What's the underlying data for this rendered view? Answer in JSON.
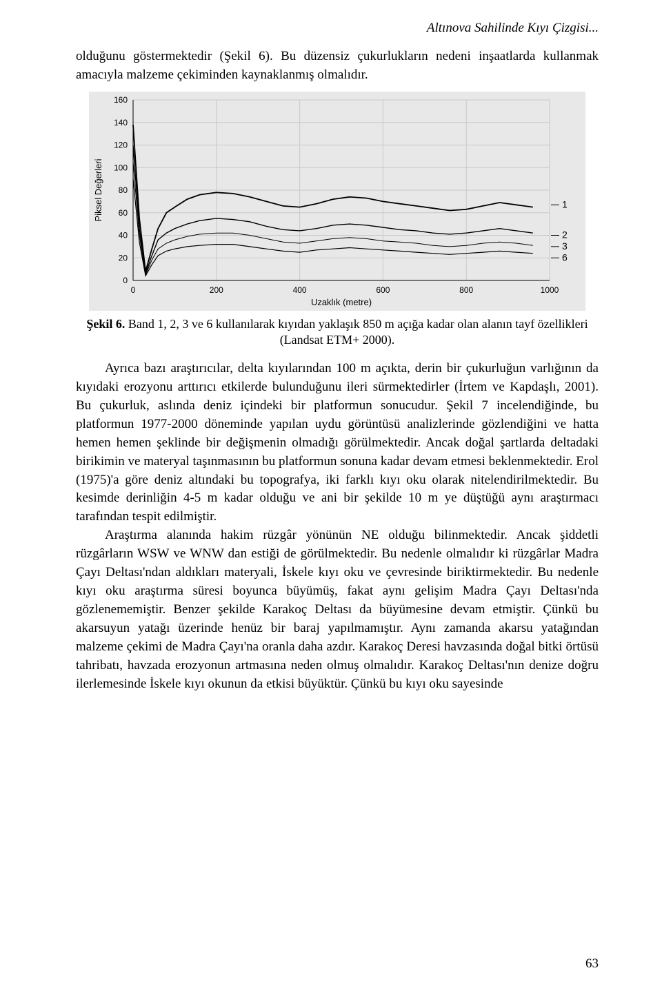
{
  "running_head": "Altınova Sahilinde Kıyı Çizgisi...",
  "intro_paragraph": "olduğunu göstermektedir (Şekil 6). Bu düzensiz çukurlukların nedeni inşaatlarda kullanmak amacıyla malzeme çekiminden kaynaklanmış olmalıdır.",
  "chart": {
    "type": "line",
    "background_color": "#e8e8e8",
    "plot_color": "#e8e8e8",
    "grid_color": "#c8c8c8",
    "axis_color": "#000000",
    "text_color": "#000000",
    "y_label": "Piksel Değerleri",
    "x_label": "Uzaklık (metre)",
    "label_fontsize": 13,
    "tick_fontsize": 12,
    "xlim": [
      0,
      1000
    ],
    "ylim": [
      0,
      160
    ],
    "x_ticks": [
      0,
      200,
      400,
      600,
      800,
      1000
    ],
    "y_ticks": [
      0,
      20,
      40,
      60,
      80,
      100,
      120,
      140,
      160
    ],
    "line_color": "#000000",
    "line_widths": [
      1.8,
      1.4,
      1.0,
      1.2
    ],
    "series_labels": [
      "1",
      "2",
      "3",
      "6"
    ],
    "legend_positions_y": [
      67,
      40,
      30,
      20
    ],
    "series": [
      {
        "name": "1",
        "points": [
          [
            0,
            138
          ],
          [
            15,
            55
          ],
          [
            30,
            8
          ],
          [
            45,
            28
          ],
          [
            60,
            46
          ],
          [
            80,
            60
          ],
          [
            100,
            65
          ],
          [
            130,
            72
          ],
          [
            160,
            76
          ],
          [
            200,
            78
          ],
          [
            240,
            77
          ],
          [
            280,
            74
          ],
          [
            320,
            70
          ],
          [
            360,
            66
          ],
          [
            400,
            65
          ],
          [
            440,
            68
          ],
          [
            480,
            72
          ],
          [
            520,
            74
          ],
          [
            560,
            73
          ],
          [
            600,
            70
          ],
          [
            640,
            68
          ],
          [
            680,
            66
          ],
          [
            720,
            64
          ],
          [
            760,
            62
          ],
          [
            800,
            63
          ],
          [
            840,
            66
          ],
          [
            880,
            69
          ],
          [
            920,
            67
          ],
          [
            960,
            65
          ]
        ]
      },
      {
        "name": "2",
        "points": [
          [
            0,
            120
          ],
          [
            15,
            46
          ],
          [
            30,
            6
          ],
          [
            45,
            22
          ],
          [
            60,
            36
          ],
          [
            80,
            42
          ],
          [
            100,
            46
          ],
          [
            130,
            50
          ],
          [
            160,
            53
          ],
          [
            200,
            55
          ],
          [
            240,
            54
          ],
          [
            280,
            52
          ],
          [
            320,
            48
          ],
          [
            360,
            45
          ],
          [
            400,
            44
          ],
          [
            440,
            46
          ],
          [
            480,
            49
          ],
          [
            520,
            50
          ],
          [
            560,
            49
          ],
          [
            600,
            47
          ],
          [
            640,
            45
          ],
          [
            680,
            44
          ],
          [
            720,
            42
          ],
          [
            760,
            41
          ],
          [
            800,
            42
          ],
          [
            840,
            44
          ],
          [
            880,
            46
          ],
          [
            920,
            44
          ],
          [
            960,
            42
          ]
        ]
      },
      {
        "name": "3",
        "points": [
          [
            0,
            105
          ],
          [
            15,
            40
          ],
          [
            30,
            5
          ],
          [
            45,
            18
          ],
          [
            60,
            28
          ],
          [
            80,
            33
          ],
          [
            100,
            36
          ],
          [
            130,
            39
          ],
          [
            160,
            41
          ],
          [
            200,
            42
          ],
          [
            240,
            42
          ],
          [
            280,
            40
          ],
          [
            320,
            37
          ],
          [
            360,
            34
          ],
          [
            400,
            33
          ],
          [
            440,
            35
          ],
          [
            480,
            37
          ],
          [
            520,
            38
          ],
          [
            560,
            37
          ],
          [
            600,
            35
          ],
          [
            640,
            34
          ],
          [
            680,
            33
          ],
          [
            720,
            31
          ],
          [
            760,
            30
          ],
          [
            800,
            31
          ],
          [
            840,
            33
          ],
          [
            880,
            34
          ],
          [
            920,
            33
          ],
          [
            960,
            31
          ]
        ]
      },
      {
        "name": "6",
        "points": [
          [
            0,
            90
          ],
          [
            15,
            34
          ],
          [
            30,
            4
          ],
          [
            45,
            14
          ],
          [
            60,
            22
          ],
          [
            80,
            26
          ],
          [
            100,
            28
          ],
          [
            130,
            30
          ],
          [
            160,
            31
          ],
          [
            200,
            32
          ],
          [
            240,
            32
          ],
          [
            280,
            30
          ],
          [
            320,
            28
          ],
          [
            360,
            26
          ],
          [
            400,
            25
          ],
          [
            440,
            27
          ],
          [
            480,
            28
          ],
          [
            520,
            29
          ],
          [
            560,
            28
          ],
          [
            600,
            27
          ],
          [
            640,
            26
          ],
          [
            680,
            25
          ],
          [
            720,
            24
          ],
          [
            760,
            23
          ],
          [
            800,
            24
          ],
          [
            840,
            25
          ],
          [
            880,
            26
          ],
          [
            920,
            25
          ],
          [
            960,
            24
          ]
        ]
      }
    ]
  },
  "caption": {
    "label": "Şekil 6.",
    "text": " Band 1, 2, 3 ve 6 kullanılarak kıyıdan yaklaşık 850 m açığa kadar olan alanın tayf özellikleri (Landsat ETM+ 2000)."
  },
  "body_p1": "Ayrıca bazı araştırıcılar, delta kıyılarından 100 m açıkta, derin bir çukurluğun varlığının da kıyıdaki erozyonu arttırıcı etkilerde bulunduğunu ileri sürmektedirler (İrtem ve Kapdaşlı, 2001). Bu çukurluk, aslında deniz içindeki bir platformun sonucudur. Şekil 7 incelendiğinde, bu platformun 1977-2000 döneminde yapılan uydu görüntüsü analizlerinde gözlendiğini ve hatta hemen hemen şeklinde bir değişmenin olmadığı görülmektedir. Ancak doğal şartlarda deltadaki birikimin ve materyal taşınmasının bu platformun sonuna kadar devam etmesi beklenmektedir. Erol (1975)'a göre deniz altındaki bu topografya, iki farklı kıyı oku olarak nitelendirilmektedir. Bu kesimde derinliğin 4-5 m kadar olduğu ve ani bir şekilde 10 m ye düştüğü aynı araştırmacı tarafından tespit edilmiştir.",
  "body_p2": "Araştırma alanında hakim rüzgâr yönünün NE olduğu bilinmektedir. Ancak şiddetli rüzgârların WSW ve WNW dan estiği de görülmektedir. Bu nedenle olmalıdır ki rüzgârlar Madra Çayı Deltası'ndan aldıkları materyali, İskele kıyı oku ve çevresinde biriktirmektedir. Bu nedenle kıyı oku araştırma süresi boyunca büyümüş, fakat aynı gelişim Madra Çayı Deltası'nda gözlenememiştir. Benzer şekilde Karakoç Deltası da büyümesine devam etmiştir. Çünkü bu akarsuyun yatağı üzerinde henüz bir baraj yapılmamıştır. Aynı zamanda akarsu yatağından malzeme çekimi de Madra Çayı'na oranla daha azdır. Karakoç Deresi havzasında doğal bitki örtüsü tahribatı, havzada erozyonun artmasına neden olmuş olmalıdır. Karakoç Deltası'nın denize doğru ilerlemesinde İskele kıyı okunun da etkisi büyüktür. Çünkü bu kıyı oku sayesinde",
  "page_number": "63"
}
